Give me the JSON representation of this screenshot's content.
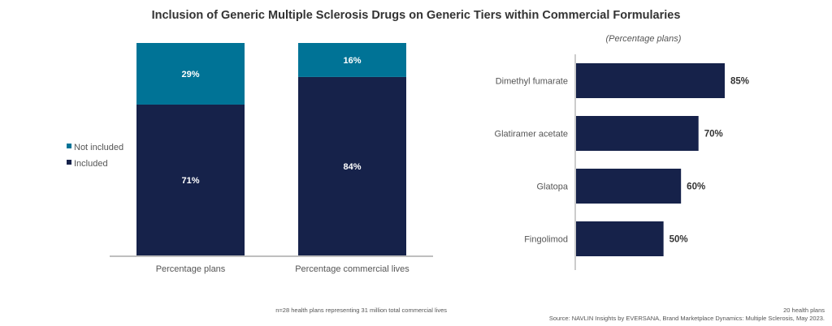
{
  "title": "Inclusion of Generic Multiple Sclerosis Drugs on Generic Tiers within Commercial Formularies",
  "colors": {
    "included": "#16224a",
    "not_included": "#007396",
    "axis": "#aaaaaa"
  },
  "chart_data": [
    {
      "type": "bar",
      "stacked": true,
      "orientation": "vertical",
      "categories": [
        "Percentage plans",
        "Percentage commercial lives"
      ],
      "series": [
        {
          "name": "Included",
          "values": [
            71,
            84
          ],
          "labels": [
            "71%",
            "84%"
          ]
        },
        {
          "name": "Not included",
          "values": [
            29,
            16
          ],
          "labels": [
            "29%",
            "16%"
          ]
        }
      ],
      "ylim": [
        0,
        100
      ],
      "legend": [
        "Not included",
        "Included"
      ],
      "legend_placement": "left",
      "grid": false,
      "footnote": "n=28 health plans representing 31 million total commercial lives"
    },
    {
      "type": "bar",
      "orientation": "horizontal",
      "subtitle": "(Percentage plans)",
      "categories": [
        "Dimethyl fumarate",
        "Glatiramer acetate",
        "Glatopa",
        "Fingolimod"
      ],
      "values": [
        85,
        70,
        60,
        50
      ],
      "labels": [
        "85%",
        "70%",
        "60%",
        "50%"
      ],
      "xlim": [
        0,
        100
      ],
      "grid": false,
      "footnote": "20 health plans"
    }
  ],
  "source": "Source: NAVLIN Insights by EVERSANA, Brand Marketplace Dynamics: Multiple Sclerosis, May 2023."
}
